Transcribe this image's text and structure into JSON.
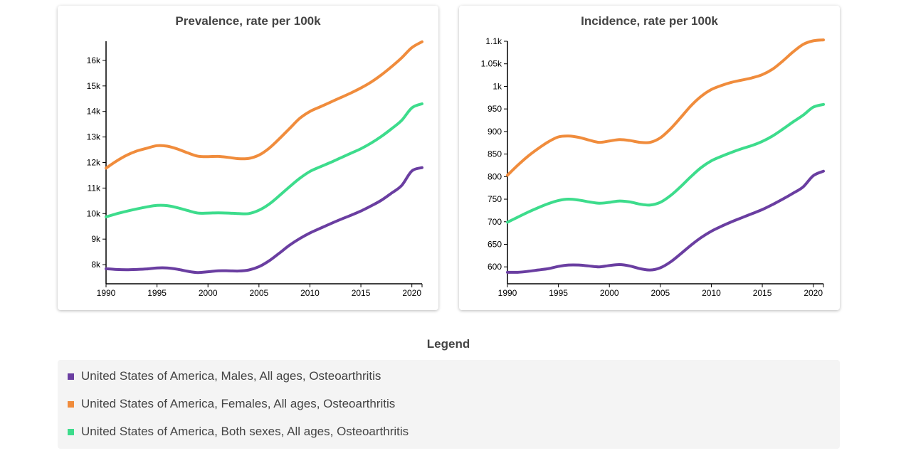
{
  "chart_data": [
    {
      "type": "line",
      "title": "Prevalence, rate per 100k",
      "xlabel": "",
      "ylabel": "",
      "xlim": [
        1990,
        2021
      ],
      "ylim": [
        7250,
        16750
      ],
      "x_ticks": [
        1990,
        1995,
        2000,
        2005,
        2010,
        2015,
        2020
      ],
      "x_tick_labels": [
        "1990",
        "1995",
        "2000",
        "2005",
        "2010",
        "2015",
        "2020"
      ],
      "y_ticks": [
        8000,
        9000,
        10000,
        11000,
        12000,
        13000,
        14000,
        15000,
        16000
      ],
      "y_tick_labels": [
        "8k",
        "9k",
        "10k",
        "11k",
        "12k",
        "13k",
        "14k",
        "15k",
        "16k"
      ],
      "x": [
        1990,
        1991,
        1992,
        1993,
        1994,
        1995,
        1996,
        1997,
        1998,
        1999,
        2000,
        2001,
        2002,
        2003,
        2004,
        2005,
        2006,
        2007,
        2008,
        2009,
        2010,
        2011,
        2012,
        2013,
        2014,
        2015,
        2016,
        2017,
        2018,
        2019,
        2020,
        2021
      ],
      "series": [
        {
          "name": "United States of America, Males, All ages, Osteoarthritis",
          "color": "#6a3ea1",
          "values": [
            7840,
            7810,
            7800,
            7810,
            7830,
            7870,
            7870,
            7820,
            7740,
            7690,
            7720,
            7760,
            7760,
            7750,
            7790,
            7920,
            8150,
            8450,
            8760,
            9020,
            9240,
            9420,
            9600,
            9770,
            9930,
            10100,
            10300,
            10520,
            10800,
            11100,
            11670,
            11800
          ]
        },
        {
          "name": "United States of America, Females, All ages, Osteoarthritis",
          "color": "#f08c3c",
          "values": [
            11780,
            12050,
            12280,
            12450,
            12560,
            12660,
            12640,
            12530,
            12380,
            12250,
            12230,
            12240,
            12200,
            12150,
            12160,
            12290,
            12560,
            12930,
            13330,
            13730,
            14000,
            14180,
            14360,
            14540,
            14720,
            14920,
            15150,
            15430,
            15750,
            16100,
            16500,
            16730
          ]
        },
        {
          "name": "United States of America, Both sexes, All ages, Osteoarthritis",
          "color": "#3ddc8c",
          "values": [
            9870,
            9990,
            10090,
            10180,
            10260,
            10320,
            10310,
            10230,
            10120,
            10020,
            10020,
            10030,
            10020,
            10000,
            10000,
            10130,
            10370,
            10700,
            11050,
            11380,
            11650,
            11830,
            12000,
            12180,
            12360,
            12540,
            12760,
            13020,
            13320,
            13650,
            14140,
            14300
          ]
        }
      ]
    },
    {
      "type": "line",
      "title": "Incidence, rate per 100k",
      "xlabel": "",
      "ylabel": "",
      "xlim": [
        1990,
        2021
      ],
      "ylim": [
        562.5,
        1100
      ],
      "x_ticks": [
        1990,
        1995,
        2000,
        2005,
        2010,
        2015,
        2020
      ],
      "x_tick_labels": [
        "1990",
        "1995",
        "2000",
        "2005",
        "2010",
        "2015",
        "2020"
      ],
      "y_ticks": [
        600,
        650,
        700,
        750,
        800,
        850,
        900,
        950,
        1000,
        1050,
        1100
      ],
      "y_tick_labels": [
        "600",
        "650",
        "700",
        "750",
        "800",
        "850",
        "900",
        "950",
        "1k",
        "1.05k",
        "1.1k"
      ],
      "x": [
        1990,
        1991,
        1992,
        1993,
        1994,
        1995,
        1996,
        1997,
        1998,
        1999,
        2000,
        2001,
        2002,
        2003,
        2004,
        2005,
        2006,
        2007,
        2008,
        2009,
        2010,
        2011,
        2012,
        2013,
        2014,
        2015,
        2016,
        2017,
        2018,
        2019,
        2020,
        2021
      ],
      "series": [
        {
          "name": "United States of America, Males, All ages, Osteoarthritis",
          "color": "#6a3ea1",
          "values": [
            588,
            588,
            590,
            593,
            596,
            601,
            604,
            604,
            602,
            600,
            603,
            605,
            602,
            596,
            593,
            598,
            611,
            629,
            648,
            665,
            679,
            690,
            700,
            709,
            718,
            727,
            738,
            750,
            763,
            777,
            802,
            812
          ]
        },
        {
          "name": "United States of America, Females, All ages, Osteoarthritis",
          "color": "#f08c3c",
          "values": [
            803,
            825,
            845,
            862,
            877,
            888,
            890,
            887,
            881,
            876,
            879,
            882,
            880,
            876,
            876,
            886,
            906,
            931,
            957,
            978,
            993,
            1002,
            1009,
            1014,
            1019,
            1026,
            1038,
            1056,
            1076,
            1093,
            1101,
            1103
          ]
        },
        {
          "name": "United States of America, Both sexes, All ages, Osteoarthritis",
          "color": "#3ddc8c",
          "values": [
            699,
            710,
            721,
            731,
            740,
            747,
            750,
            748,
            744,
            741,
            743,
            746,
            744,
            739,
            737,
            743,
            758,
            778,
            800,
            820,
            835,
            845,
            854,
            862,
            869,
            878,
            890,
            905,
            921,
            936,
            954,
            960
          ]
        }
      ]
    }
  ],
  "legend": {
    "title": "Legend",
    "items": [
      {
        "label": "United States of America, Males, All ages, Osteoarthritis",
        "color": "#6a3ea1"
      },
      {
        "label": "United States of America, Females, All ages, Osteoarthritis",
        "color": "#f08c3c"
      },
      {
        "label": "United States of America, Both sexes, All ages, Osteoarthritis",
        "color": "#3ddc8c"
      }
    ]
  }
}
